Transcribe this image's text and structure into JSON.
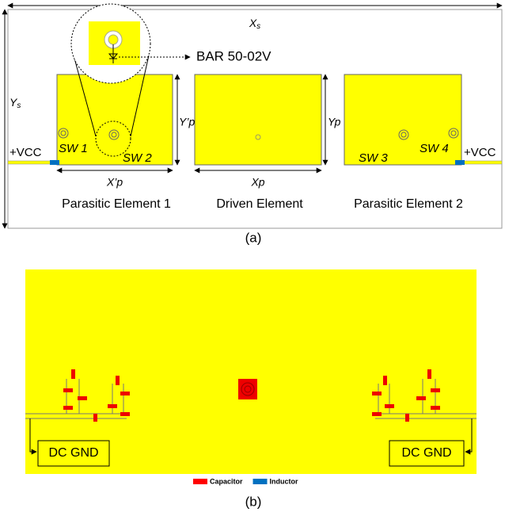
{
  "panel_a": {
    "xs": {
      "main": "X",
      "sub": "s"
    },
    "ys": {
      "main": "Y",
      "sub": "s"
    },
    "diode_label": "BAR 50-02V",
    "ypp": "Y’p",
    "yp": "Yp",
    "xpp": "X’p",
    "xp": "Xp",
    "vcc_left": "+VCC",
    "vcc_right": "+VCC",
    "switches": [
      "SW 1",
      "SW 2",
      "SW 3",
      "SW 4"
    ],
    "elements": [
      "Parasitic Element 1",
      "Driven Element",
      "Parasitic Element 2"
    ],
    "caption": "(a)"
  },
  "panel_b": {
    "dc_gnd_left": "DC GND",
    "dc_gnd_right": "DC GND",
    "legend": [
      {
        "name": "Capacitor",
        "color": "#ff0000"
      },
      {
        "name": "Inductor",
        "color": "#0070c0"
      }
    ],
    "caption": "(b)"
  }
}
